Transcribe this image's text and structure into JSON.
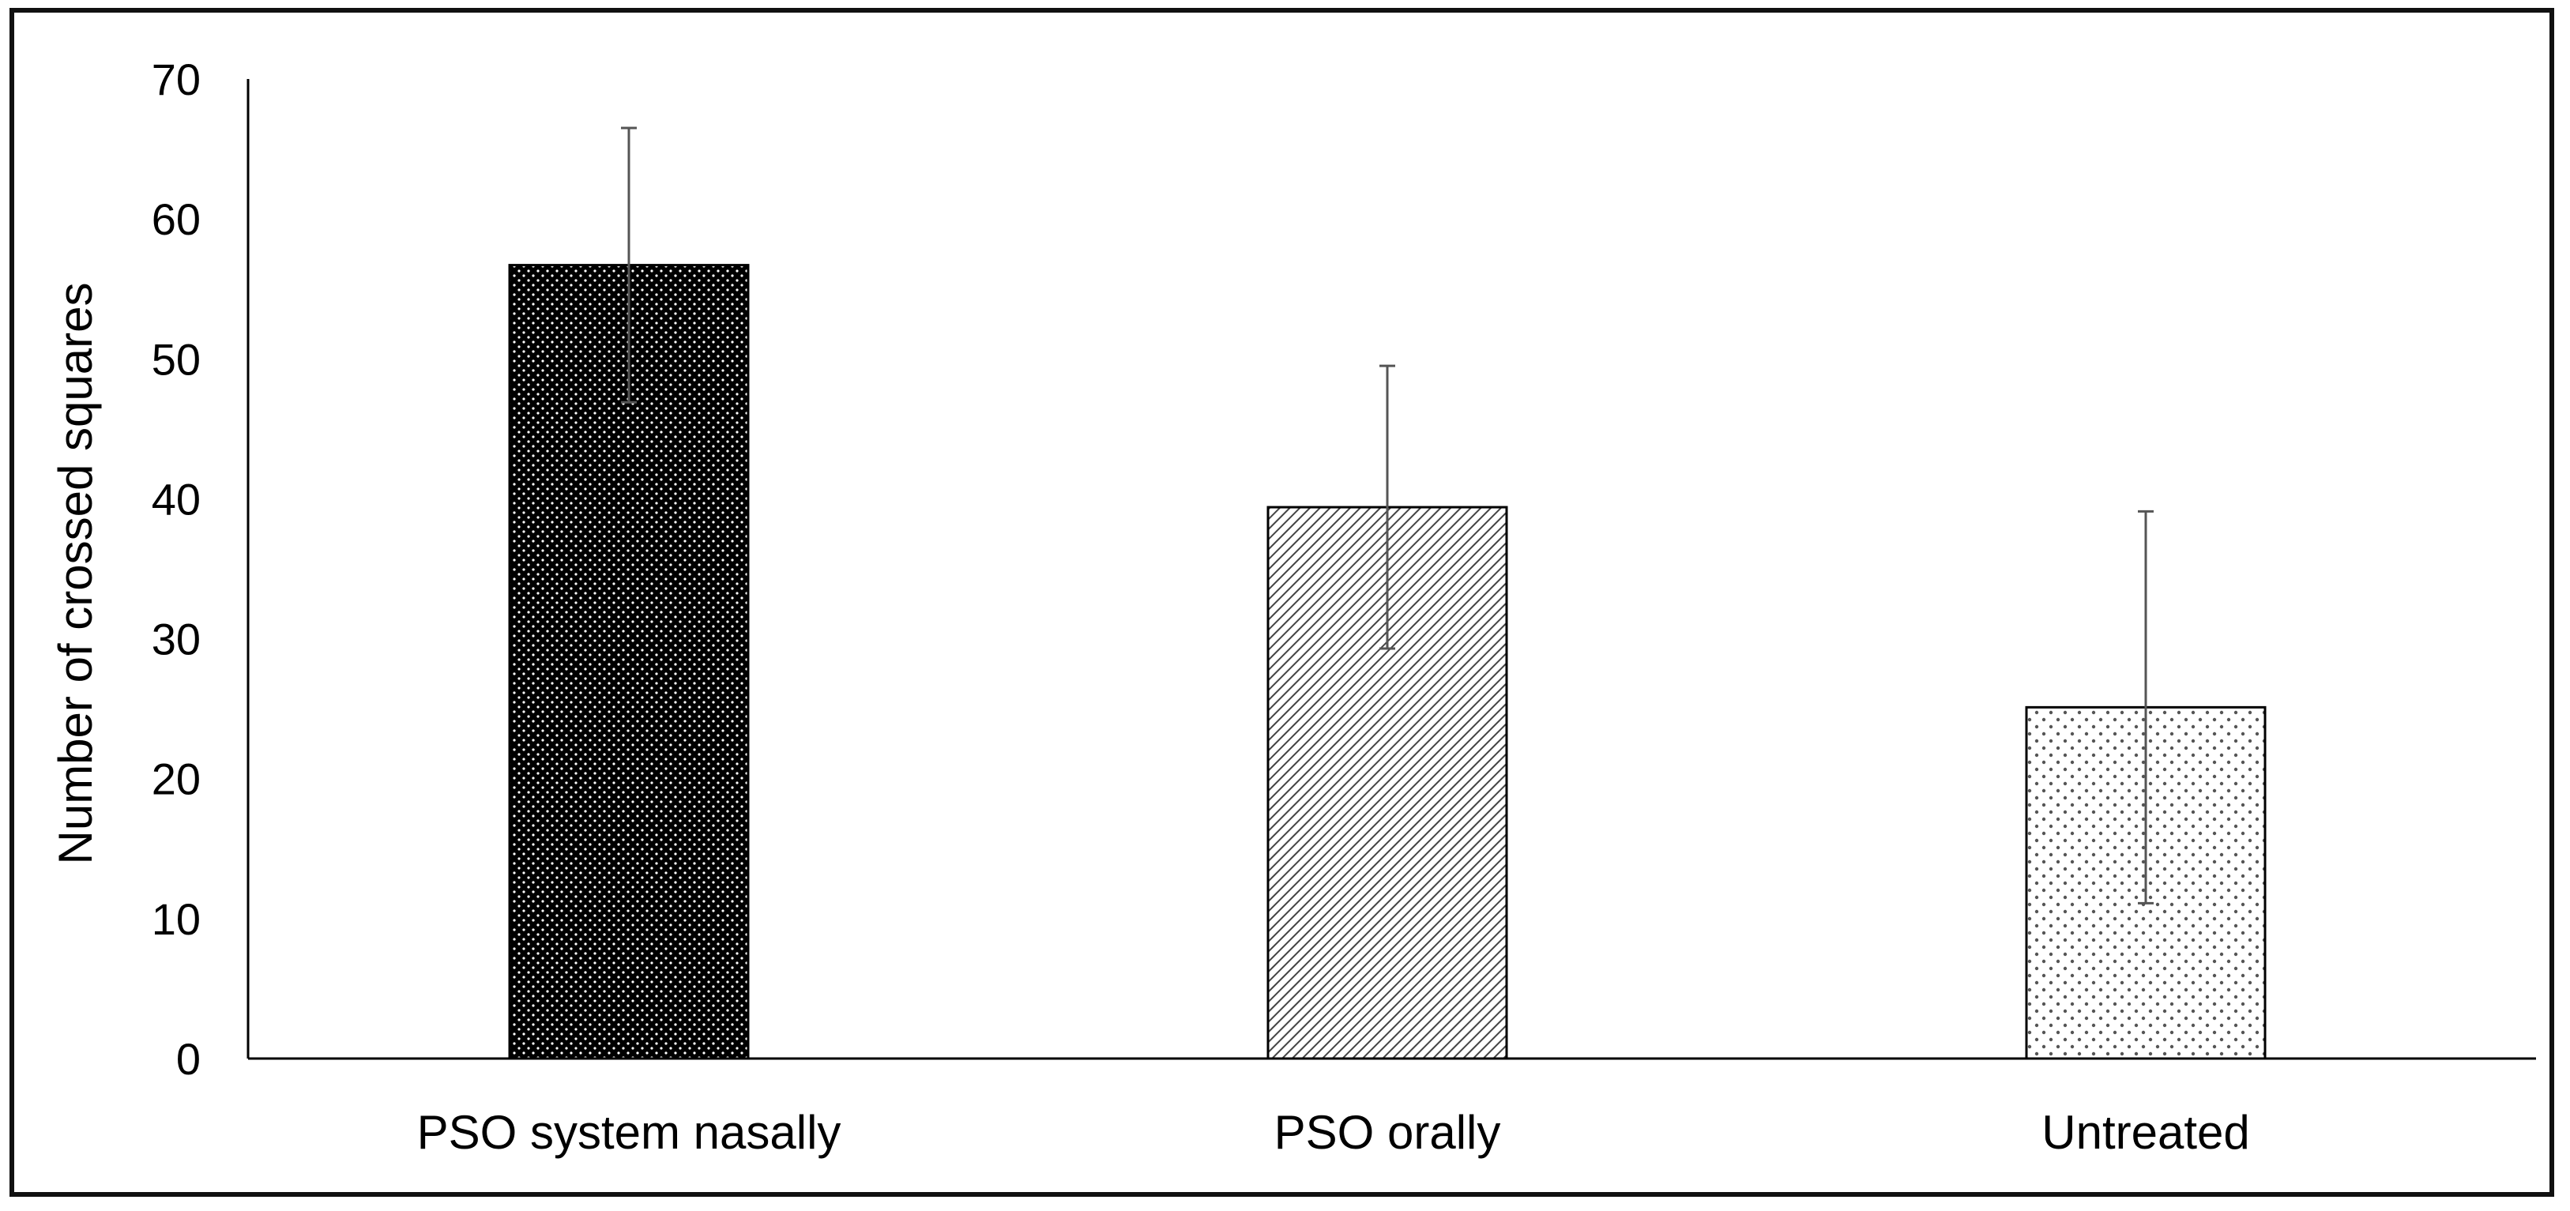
{
  "chart_data": {
    "type": "bar",
    "title": "",
    "xlabel": "",
    "ylabel": "Number of crossed squares",
    "ylim": [
      0,
      70
    ],
    "yticks": [
      0,
      10,
      20,
      30,
      40,
      50,
      60,
      70
    ],
    "grid": false,
    "legend": "none",
    "categories": [
      "PSO system nasally",
      "PSO orally",
      "Untreated"
    ],
    "values": [
      56.7,
      39.4,
      25.1
    ],
    "error": [
      9.8,
      10.1,
      14.0
    ],
    "fills": [
      "dark-dotted",
      "diagonal-hatch",
      "light-dotted"
    ],
    "colors": {
      "bar_dark": "#000000",
      "bar_stroke": "#000000",
      "axis": "#000000",
      "errorbar": "#555555"
    }
  }
}
